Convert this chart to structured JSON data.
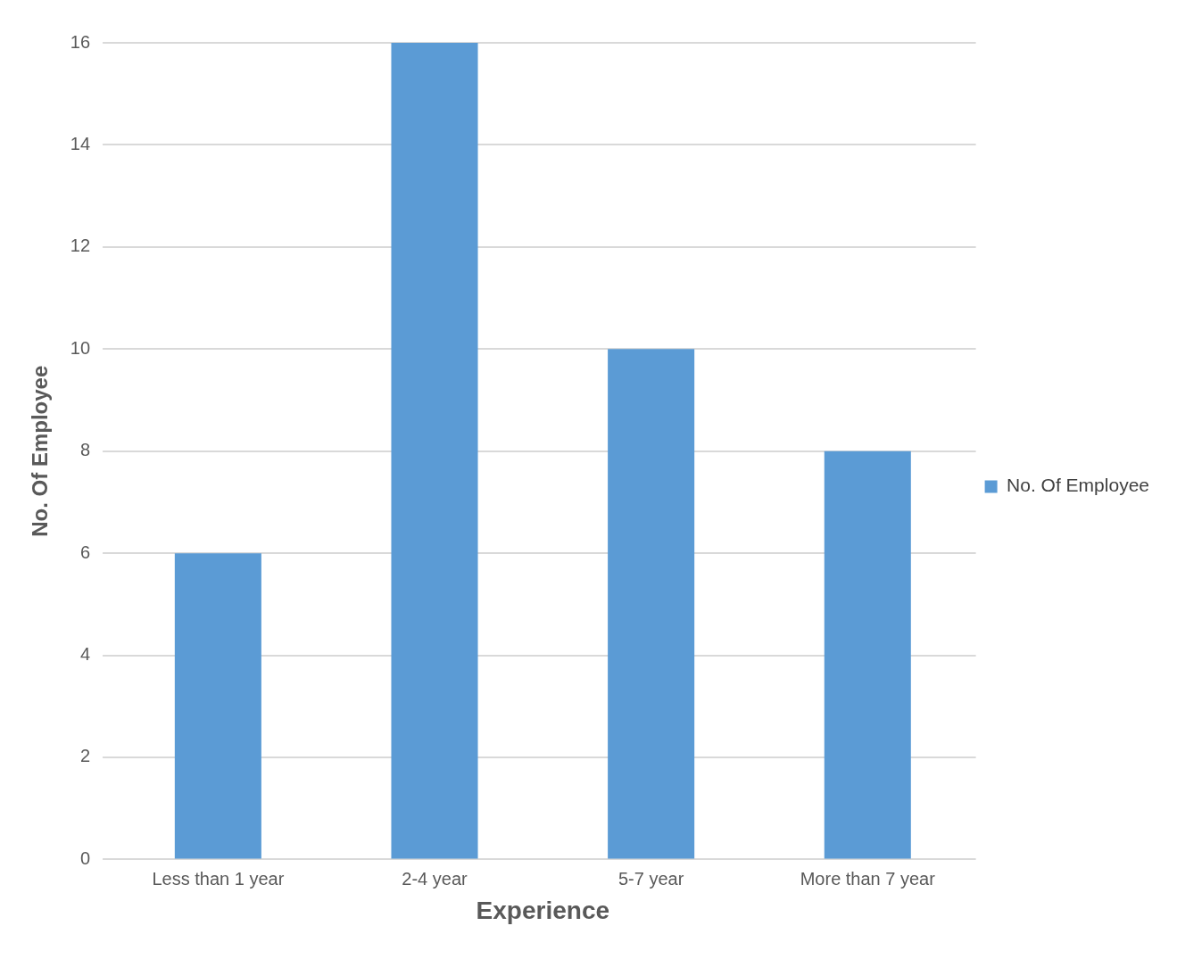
{
  "chart_data": {
    "type": "bar",
    "xlabel": "Experience",
    "ylabel": "No. Of Employee",
    "categories": [
      "Less than 1 year",
      "2-4 year",
      "5-7 year",
      "More than 7 year"
    ],
    "series": [
      {
        "name": "No. Of Employee",
        "color": "#5b9bd5",
        "values": [
          6,
          16,
          10,
          8
        ]
      }
    ],
    "ylim": [
      0,
      16
    ],
    "yticks": [
      0,
      2,
      4,
      6,
      8,
      10,
      12,
      14,
      16
    ],
    "grid": "y",
    "legend": "right"
  }
}
